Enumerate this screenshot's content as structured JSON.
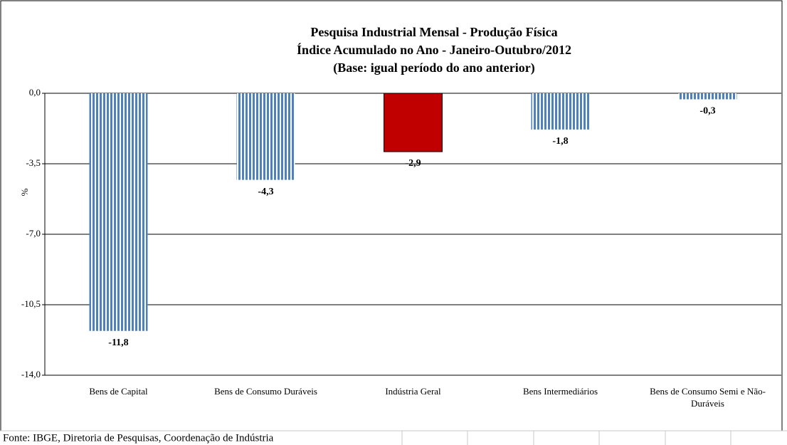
{
  "chart_data": {
    "type": "bar",
    "title": [
      "Pesquisa Industrial Mensal - Produção Física",
      "Índice Acumulado no Ano - Janeiro-Outubro/2012",
      "(Base: igual período do ano anterior)"
    ],
    "y_label": "%",
    "categories": [
      "Bens de Capital",
      "Bens de Consumo Duráveis",
      "Indústria Geral",
      "Bens Intermediários",
      "Bens de Consumo Semi e Não-Duráveis"
    ],
    "values": [
      -11.8,
      -4.3,
      -2.9,
      -1.8,
      -0.3
    ],
    "value_labels": [
      "-11,8",
      "-4,3",
      "-2,9",
      "-1,8",
      "-0,3"
    ],
    "colors": [
      "#4f81bd",
      "#4f81bd",
      "#c00000",
      "#4f81bd",
      "#4f81bd"
    ],
    "styles": [
      "striped",
      "striped",
      "solid",
      "striped",
      "striped"
    ],
    "ylim": [
      -14,
      0
    ],
    "yticks": [
      {
        "value": 0,
        "label": "0,0"
      },
      {
        "value": -3.5,
        "label": "-3,5"
      },
      {
        "value": -7,
        "label": "-7,0"
      },
      {
        "value": -10.5,
        "label": "-10,5"
      },
      {
        "value": -14,
        "label": "-14,0"
      }
    ],
    "grid": true,
    "source": "Fonte: IBGE, Diretoria de Pesquisas, Coordenação de Indústria"
  }
}
